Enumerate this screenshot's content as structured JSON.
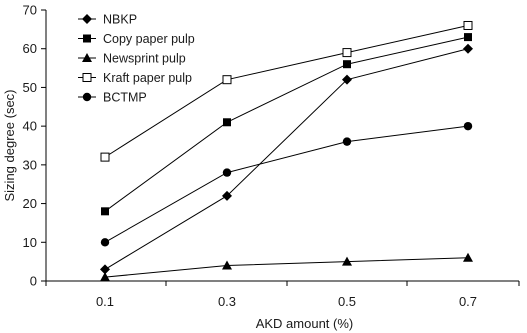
{
  "chart_data": {
    "type": "line",
    "title": "",
    "xlabel": "AKD amount (%)",
    "ylabel": "Sizing degree (sec)",
    "categories": [
      "0.1",
      "0.3",
      "0.5",
      "0.7"
    ],
    "ylim": [
      0,
      70
    ],
    "yticks": [
      0,
      10,
      20,
      30,
      40,
      50,
      60,
      70
    ],
    "grid": false,
    "legend_position": "top-left",
    "series": [
      {
        "name": "NBKP",
        "marker": "diamond-filled",
        "color": "#000000",
        "values": [
          3,
          22,
          52,
          60
        ]
      },
      {
        "name": "Copy paper pulp",
        "marker": "square-filled",
        "color": "#000000",
        "values": [
          18,
          41,
          56,
          63
        ]
      },
      {
        "name": "Newsprint pulp",
        "marker": "triangle-filled",
        "color": "#000000",
        "values": [
          1,
          4,
          5,
          6
        ]
      },
      {
        "name": "Kraft paper pulp",
        "marker": "square-open",
        "color": "#000000",
        "values": [
          32,
          52,
          59,
          66
        ]
      },
      {
        "name": "BCTMP",
        "marker": "circle-filled",
        "color": "#000000",
        "values": [
          10,
          28,
          36,
          40
        ]
      }
    ]
  }
}
